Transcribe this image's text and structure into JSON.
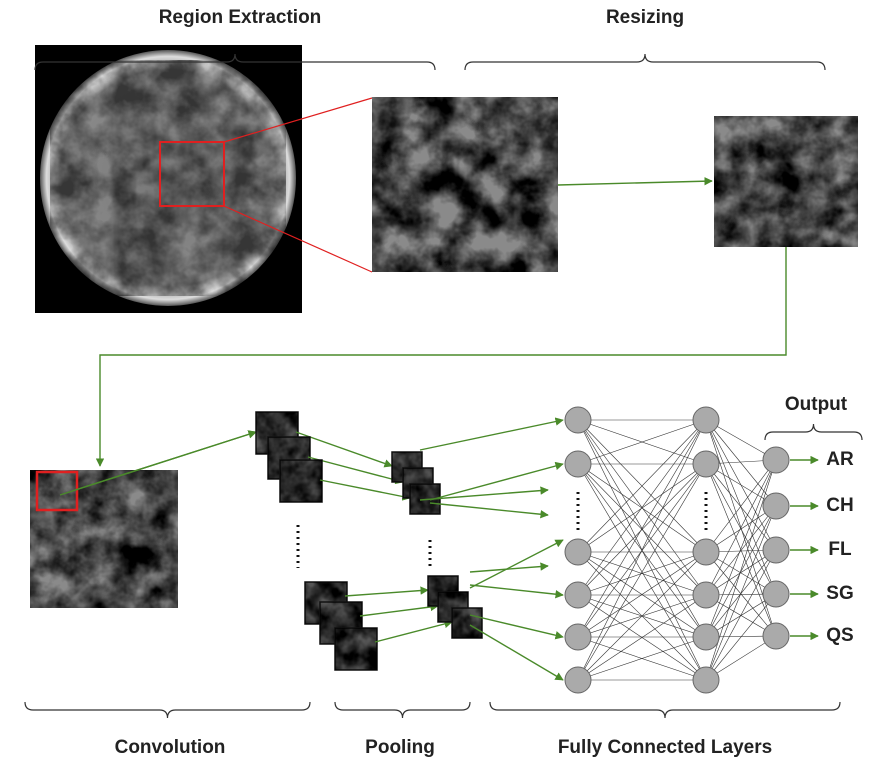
{
  "stages": {
    "top": [
      "Region Extraction",
      "Resizing"
    ],
    "bottom": [
      "Convolution",
      "Pooling",
      "Fully Connected Layers"
    ]
  },
  "output": {
    "title": "Output",
    "classes": [
      "AR",
      "CH",
      "FL",
      "SG",
      "QS"
    ]
  }
}
